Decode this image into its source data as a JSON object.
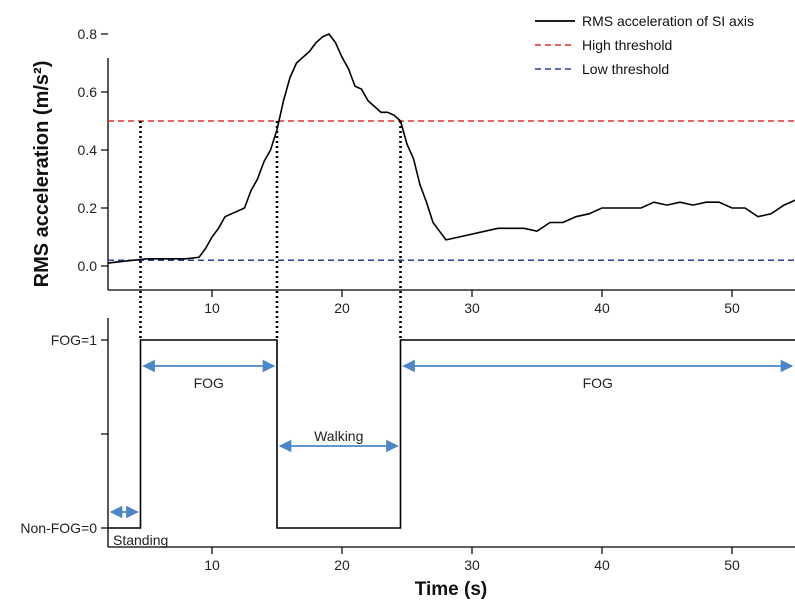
{
  "chart_data": [
    {
      "type": "line",
      "ylabel": "RMS acceleration (m/s²)",
      "ylim": [
        -0.08,
        0.9
      ],
      "xlim": [
        2,
        55
      ],
      "x_ticks": [
        10,
        20,
        30,
        40,
        50
      ],
      "y_ticks": [
        0.0,
        0.2,
        0.4,
        0.6,
        0.8
      ],
      "y_tick_labels": [
        "0.0",
        "0.2",
        "0.4",
        "0.6",
        "0.8"
      ],
      "legend": {
        "placement": "top-right",
        "entries": [
          "RMS acceleration of SI axis",
          "High threshold",
          "Low threshold"
        ]
      },
      "colors": {
        "rms": "#000000",
        "high": "#e0302a",
        "low": "#2d3f9a"
      },
      "series": [
        {
          "name": "RMS acceleration of SI axis",
          "x": [
            2,
            3,
            4,
            5,
            6,
            7,
            8,
            9,
            9.5,
            10,
            10.5,
            11,
            12.5,
            13,
            13.5,
            14,
            14.5,
            15,
            15.5,
            16,
            16.5,
            17,
            17.5,
            18,
            18.5,
            19,
            19.5,
            20,
            20.5,
            21,
            21.5,
            22,
            22.5,
            23,
            23.5,
            24,
            24.5,
            25,
            25.5,
            26,
            26.5,
            27,
            27.5,
            28,
            29,
            30,
            31,
            32,
            33,
            34,
            35,
            36,
            37,
            38,
            39,
            40,
            41,
            42,
            43,
            44,
            45,
            46,
            47,
            48,
            49,
            50,
            51,
            52,
            53,
            54,
            55
          ],
          "y": [
            0.01,
            0.015,
            0.02,
            0.025,
            0.025,
            0.025,
            0.025,
            0.03,
            0.06,
            0.1,
            0.13,
            0.17,
            0.2,
            0.26,
            0.3,
            0.36,
            0.4,
            0.47,
            0.57,
            0.65,
            0.7,
            0.72,
            0.74,
            0.77,
            0.79,
            0.8,
            0.77,
            0.72,
            0.68,
            0.62,
            0.61,
            0.57,
            0.55,
            0.53,
            0.53,
            0.52,
            0.5,
            0.42,
            0.37,
            0.28,
            0.22,
            0.15,
            0.12,
            0.09,
            0.1,
            0.11,
            0.12,
            0.13,
            0.13,
            0.13,
            0.12,
            0.15,
            0.15,
            0.17,
            0.18,
            0.2,
            0.2,
            0.2,
            0.2,
            0.22,
            0.21,
            0.22,
            0.21,
            0.22,
            0.22,
            0.2,
            0.2,
            0.17,
            0.18,
            0.21,
            0.23
          ]
        },
        {
          "name": "High threshold",
          "x": [
            2,
            55
          ],
          "y": [
            0.5,
            0.5
          ]
        },
        {
          "name": "Low threshold",
          "x": [
            2,
            55
          ],
          "y": [
            0.02,
            0.02
          ]
        }
      ]
    },
    {
      "type": "line",
      "xlabel": "Time (s)",
      "xlim": [
        2,
        55
      ],
      "x_ticks": [
        10,
        20,
        30,
        40,
        50
      ],
      "y_tick_labels": [
        "FOG=1",
        "Non-FOG=0"
      ],
      "series": [
        {
          "x": [
            2,
            4.5,
            4.5,
            15,
            15,
            24.5,
            24.5,
            55
          ],
          "y": [
            0,
            0,
            1,
            1,
            0,
            0,
            1,
            1
          ]
        }
      ],
      "annotations": [
        {
          "label": "FOG",
          "from": 4.5,
          "to": 15
        },
        {
          "label": "Walking",
          "from": 15,
          "to": 24.5
        },
        {
          "label": "FOG",
          "from": 24.5,
          "to": 55
        },
        {
          "label": "Standing",
          "from": 2,
          "to": 4.5
        }
      ],
      "transition_times": [
        4.5,
        15,
        24.5
      ]
    }
  ]
}
